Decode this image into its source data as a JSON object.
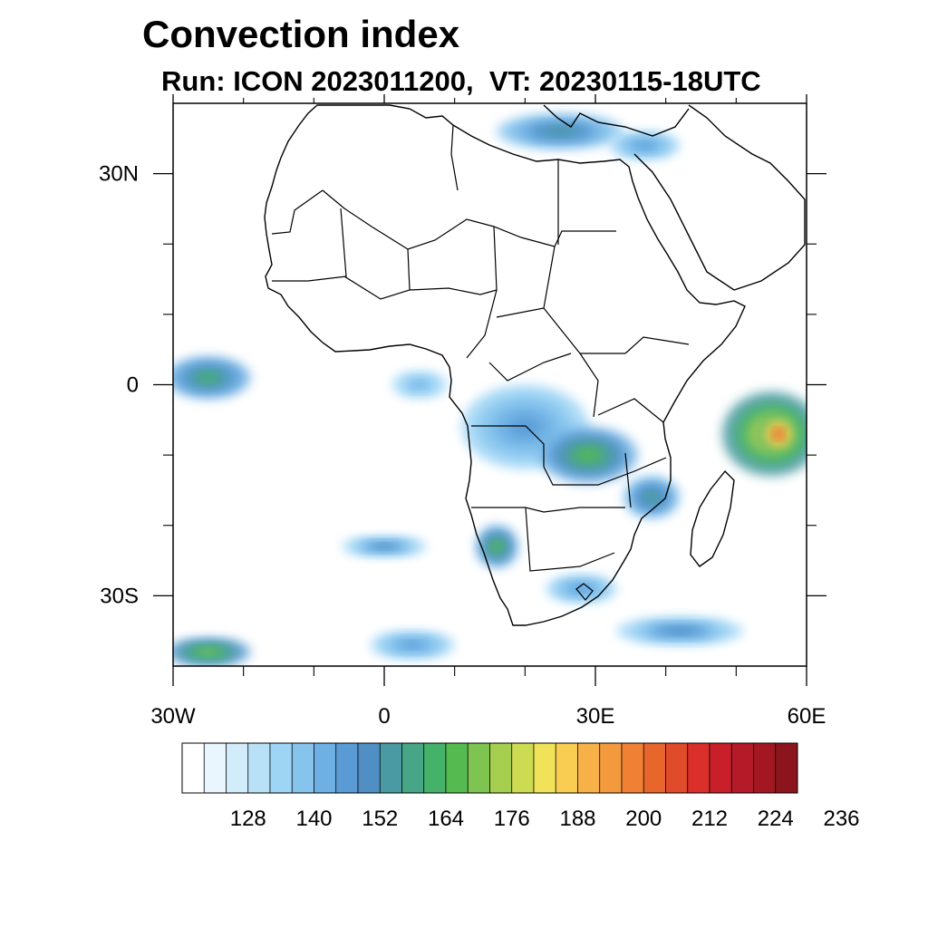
{
  "title": "Convection index",
  "subtitle": "Run: ICON 2023011200,  VT: 20230115-18UTC",
  "map": {
    "lon_range": [
      -30,
      60
    ],
    "lat_range": [
      -40,
      40
    ],
    "x_ticks": [
      {
        "value": -30,
        "label": "30W"
      },
      {
        "value": 0,
        "label": "0"
      },
      {
        "value": 30,
        "label": "30E"
      },
      {
        "value": 60,
        "label": "60E"
      }
    ],
    "y_ticks": [
      {
        "value": 30,
        "label": "30N"
      },
      {
        "value": 0,
        "label": "0"
      },
      {
        "value": -30,
        "label": "30S"
      }
    ],
    "minor_x": [
      -20,
      -10,
      10,
      20,
      40,
      50
    ],
    "minor_y": [
      20,
      10,
      -10,
      -20
    ]
  },
  "colorbar": {
    "labels": [
      "128",
      "140",
      "152",
      "164",
      "176",
      "188",
      "200",
      "212",
      "224",
      "236"
    ],
    "colors": [
      "#ffffff",
      "#eaf6fd",
      "#d2ecfa",
      "#b8e1f8",
      "#9ed5f5",
      "#86c4ee",
      "#6eb0e4",
      "#5a9bd6",
      "#4f8fc4",
      "#4a9aa3",
      "#47a685",
      "#45b26a",
      "#55bb50",
      "#7dc450",
      "#a6cf50",
      "#cddb52",
      "#f0e359",
      "#f8cd52",
      "#f7b148",
      "#f39a3e",
      "#ef8034",
      "#e8652c",
      "#e04b29",
      "#da3029",
      "#c91f2b",
      "#b51a28",
      "#a31722",
      "#8c141d"
    ]
  },
  "fields": [
    {
      "name": "north-africa-med",
      "lon": 25,
      "lat": 36,
      "rx": 9,
      "ry": 2.5,
      "level": 9
    },
    {
      "name": "east-med",
      "lon": 37,
      "lat": 34,
      "rx": 5,
      "ry": 2,
      "level": 7
    },
    {
      "name": "atlantic-equatorial",
      "lon": -25,
      "lat": 1,
      "rx": 6,
      "ry": 3,
      "level": 11
    },
    {
      "name": "gulf-guinea",
      "lon": 5,
      "lat": 0,
      "rx": 4,
      "ry": 2,
      "level": 6
    },
    {
      "name": "congo-basin",
      "lon": 20,
      "lat": -6,
      "rx": 9,
      "ry": 6,
      "level": 7
    },
    {
      "name": "zambia-tanzania",
      "lon": 29,
      "lat": -10,
      "rx": 7,
      "ry": 4,
      "level": 12
    },
    {
      "name": "mozambique-channel",
      "lon": 38,
      "lat": -16,
      "rx": 4,
      "ry": 3,
      "level": 10
    },
    {
      "name": "indian-ocean",
      "lon": 55,
      "lat": -7,
      "rx": 7,
      "ry": 6,
      "level": 17
    },
    {
      "name": "indian-ocean-core",
      "lon": 56,
      "lat": -7,
      "rx": 3,
      "ry": 3,
      "level": 22
    },
    {
      "name": "namibia",
      "lon": 16,
      "lat": -23,
      "rx": 3,
      "ry": 3,
      "level": 12
    },
    {
      "name": "south-atlantic-band",
      "lon": 0,
      "lat": -23,
      "rx": 6,
      "ry": 1.5,
      "level": 8
    },
    {
      "name": "south-africa",
      "lon": 28,
      "lat": -29,
      "rx": 5,
      "ry": 2,
      "level": 7
    },
    {
      "name": "southern-ocean",
      "lon": 42,
      "lat": -35,
      "rx": 9,
      "ry": 2,
      "level": 8
    },
    {
      "name": "southwest-atlantic",
      "lon": -25,
      "lat": -38,
      "rx": 6,
      "ry": 2,
      "level": 13
    },
    {
      "name": "south-atlantic-low",
      "lon": 4,
      "lat": -37,
      "rx": 6,
      "ry": 2,
      "level": 7
    }
  ]
}
